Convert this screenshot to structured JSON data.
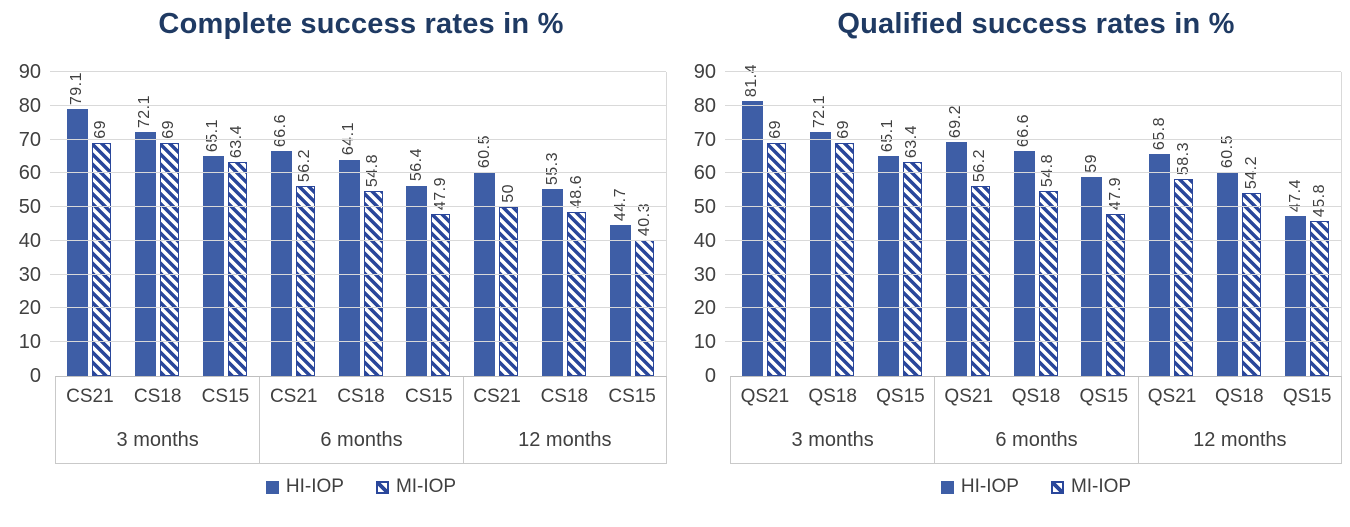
{
  "colors": {
    "title_text": "#1f3a63",
    "bar_solid_fill": "#3e5ea6",
    "hatch_stripe": "#2a479b",
    "axis_text": "#404040",
    "gridline": "#d9d9d9",
    "table_border": "#c9c9c9",
    "background": "#ffffff"
  },
  "chart_data": [
    {
      "type": "bar",
      "title": "Complete success rates in %",
      "group_labels": [
        "3 months",
        "6 months",
        "12 months"
      ],
      "categories": [
        "CS21",
        "CS18",
        "CS15",
        "CS21",
        "CS18",
        "CS15",
        "CS21",
        "CS18",
        "CS15"
      ],
      "series": [
        {
          "name": "HI-IOP",
          "pattern": "solid",
          "values": [
            79.1,
            72.1,
            65.1,
            66.6,
            64.1,
            56.4,
            60.5,
            55.3,
            44.7
          ]
        },
        {
          "name": "MI-IOP",
          "pattern": "hatched",
          "values": [
            69,
            69,
            63.4,
            56.2,
            54.8,
            47.9,
            50,
            48.6,
            40.3
          ]
        }
      ],
      "ylim": [
        0,
        90
      ],
      "ytick_step": 10,
      "yticks": [
        0,
        10,
        20,
        30,
        40,
        50,
        60,
        70,
        80,
        90
      ],
      "grid": true,
      "value_labels": "rotated-90",
      "legend_position": "bottom"
    },
    {
      "type": "bar",
      "title": "Qualified success rates in %",
      "group_labels": [
        "3 months",
        "6 months",
        "12 months"
      ],
      "categories": [
        "QS21",
        "QS18",
        "QS15",
        "QS21",
        "QS18",
        "QS15",
        "QS21",
        "QS18",
        "QS15"
      ],
      "series": [
        {
          "name": "HI-IOP",
          "pattern": "solid",
          "values": [
            81.4,
            72.1,
            65.1,
            69.2,
            66.6,
            59,
            65.8,
            60.5,
            47.4
          ]
        },
        {
          "name": "MI-IOP",
          "pattern": "hatched",
          "values": [
            69,
            69,
            63.4,
            56.2,
            54.8,
            47.9,
            58.3,
            54.2,
            45.8
          ]
        }
      ],
      "ylim": [
        0,
        90
      ],
      "ytick_step": 10,
      "yticks": [
        0,
        10,
        20,
        30,
        40,
        50,
        60,
        70,
        80,
        90
      ],
      "grid": true,
      "value_labels": "rotated-90",
      "legend_position": "bottom"
    }
  ]
}
